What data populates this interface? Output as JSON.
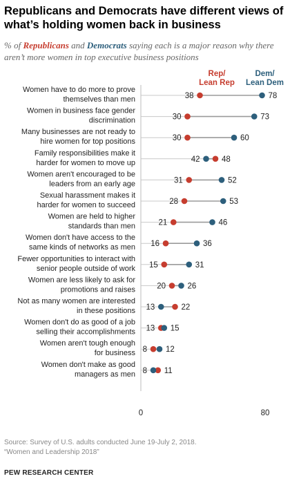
{
  "header": {
    "title": "Republicans and Democrats have different views of what’s holding women back in business",
    "subtitle_parts": {
      "pre": "% of ",
      "rep": "Republicans",
      "mid": " and ",
      "dem": "Democrats",
      "post": " saying each is a major reason why there aren’t more women in top executive business positions"
    }
  },
  "colors": {
    "rep": "#c63d2f",
    "dem": "#2d5f7c",
    "line": "#9a9a9a",
    "label": "#222222"
  },
  "chart_data": {
    "type": "dot",
    "xlim": [
      0,
      80
    ],
    "xticks": [
      "0",
      "80"
    ],
    "legend": {
      "rep": [
        "Rep/",
        "Lean Rep"
      ],
      "dem": [
        "Dem/",
        "Lean Dem"
      ]
    },
    "categories": [
      [
        "Women have to do more to prove",
        "themselves than men"
      ],
      [
        "Women in business face gender",
        "discrimination"
      ],
      [
        "Many businesses are not ready to",
        "hire women for top positions"
      ],
      [
        "Family responsibilities make it",
        "harder for women to move up"
      ],
      [
        "Women aren't encouraged to be",
        "leaders from an early age"
      ],
      [
        "Sexual harassment makes it",
        "harder for women to succeed"
      ],
      [
        "Women are held to higher",
        "standards than men"
      ],
      [
        "Women don't have access to the",
        "same kinds of networks as men"
      ],
      [
        "Fewer opportunities to interact with",
        "senior people outside of work"
      ],
      [
        "Women are less likely to ask for",
        "promotions and raises"
      ],
      [
        "Not as many women are interested",
        "in these positions"
      ],
      [
        "Women don't do as good of a job",
        "selling their accomplishments"
      ],
      [
        "Women aren't tough enough",
        "for business"
      ],
      [
        "Women don't make as good",
        "managers as men"
      ]
    ],
    "series": [
      {
        "name": "Rep/Lean Rep",
        "values": [
          38,
          30,
          30,
          48,
          31,
          28,
          21,
          16,
          15,
          20,
          22,
          13,
          8,
          11
        ]
      },
      {
        "name": "Dem/Lean Dem",
        "values": [
          78,
          73,
          60,
          42,
          52,
          53,
          46,
          36,
          31,
          26,
          13,
          15,
          12,
          8
        ]
      }
    ]
  },
  "footer": {
    "source": "Source: Survey of U.S. adults conducted June 19-July 2, 2018.",
    "report": "“Women and Leadership 2018”",
    "logo": "PEW RESEARCH CENTER"
  }
}
